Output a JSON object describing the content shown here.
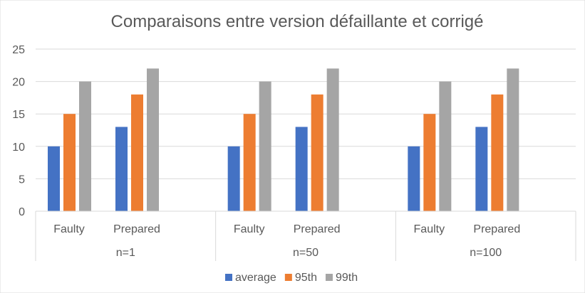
{
  "chart_data": {
    "type": "bar",
    "title": "Comparaisons entre version défaillante et corrigé",
    "xlabel": "",
    "ylabel": "",
    "ylim": [
      0,
      25
    ],
    "yticks": [
      0,
      5,
      10,
      15,
      20,
      25
    ],
    "grid": true,
    "legend_position": "bottom",
    "groups": [
      "n=1",
      "n=50",
      "n=100"
    ],
    "subcategories": [
      "Faulty",
      "Prepared"
    ],
    "series": [
      {
        "name": "average",
        "color": "#4472C4",
        "values": [
          10,
          13,
          10,
          13,
          10,
          13
        ]
      },
      {
        "name": "95th",
        "color": "#ED7D31",
        "values": [
          15,
          18,
          15,
          18,
          15,
          18
        ]
      },
      {
        "name": "99th",
        "color": "#A5A5A5",
        "values": [
          20,
          22,
          20,
          22,
          20,
          22
        ]
      }
    ]
  }
}
